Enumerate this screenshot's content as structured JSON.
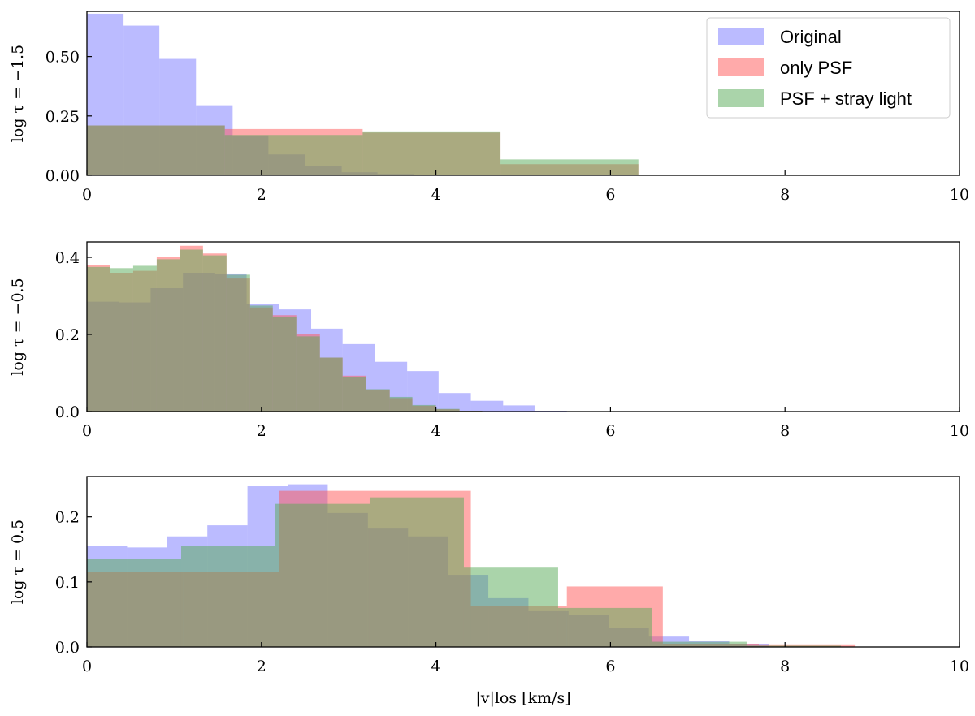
{
  "chart_data": [
    {
      "type": "bar",
      "subtype": "overlapping-histogram",
      "ylabel": "log τ = −1.5",
      "xlabel": "",
      "xlim": [
        0,
        10
      ],
      "ylim": [
        0,
        0.69
      ],
      "xticks": [
        "0",
        "2",
        "4",
        "6",
        "8",
        "10"
      ],
      "yticks": [
        "0.00",
        "0.25",
        "0.50"
      ],
      "ytick_values": [
        0,
        0.25,
        0.5
      ],
      "legend": true,
      "legend_position": "top-right",
      "series": [
        {
          "name": "Original",
          "color": "#7777ff",
          "bin_edges": [
            0,
            0.42,
            0.83,
            1.25,
            1.67,
            2.08,
            2.5,
            2.92,
            3.33,
            3.75,
            4.17,
            4.58,
            5.0
          ],
          "values": [
            0.68,
            0.63,
            0.49,
            0.295,
            0.168,
            0.088,
            0.038,
            0.013,
            0.006,
            0.003,
            0.002,
            0.001
          ]
        },
        {
          "name": "only PSF",
          "color": "#ff5555",
          "bin_edges": [
            0,
            1.58,
            3.16,
            4.74,
            6.32,
            7.9
          ],
          "values": [
            0.21,
            0.195,
            0.18,
            0.047,
            0.002
          ]
        },
        {
          "name": "PSF + stray light",
          "color": "#55aa55",
          "bin_edges": [
            0,
            1.58,
            3.16,
            4.74,
            6.32,
            7.9
          ],
          "values": [
            0.21,
            0.17,
            0.185,
            0.067,
            0.003
          ]
        }
      ]
    },
    {
      "type": "bar",
      "subtype": "overlapping-histogram",
      "ylabel": "log τ = −0.5",
      "xlabel": "",
      "xlim": [
        0,
        10
      ],
      "ylim": [
        0,
        0.44
      ],
      "xticks": [
        "0",
        "2",
        "4",
        "6",
        "8",
        "10"
      ],
      "yticks": [
        "0.0",
        "0.2",
        "0.4"
      ],
      "ytick_values": [
        0,
        0.2,
        0.4
      ],
      "legend": false,
      "series": [
        {
          "name": "Original",
          "color": "#7777ff",
          "bin_edges": [
            0,
            0.37,
            0.73,
            1.1,
            1.47,
            1.83,
            2.2,
            2.57,
            2.93,
            3.3,
            3.67,
            4.03,
            4.4,
            4.77,
            5.13,
            5.5
          ],
          "values": [
            0.285,
            0.283,
            0.32,
            0.36,
            0.358,
            0.28,
            0.265,
            0.215,
            0.175,
            0.129,
            0.105,
            0.048,
            0.028,
            0.016,
            0.002
          ]
        },
        {
          "name": "only PSF",
          "color": "#ff5555",
          "bin_edges": [
            0,
            0.27,
            0.53,
            0.8,
            1.07,
            1.33,
            1.6,
            1.87,
            2.13,
            2.4,
            2.67,
            2.93,
            3.2,
            3.47,
            3.73,
            4.0,
            4.27,
            4.53
          ],
          "values": [
            0.38,
            0.36,
            0.365,
            0.4,
            0.43,
            0.41,
            0.345,
            0.27,
            0.25,
            0.2,
            0.14,
            0.093,
            0.057,
            0.035,
            0.015,
            0.006,
            0.002
          ]
        },
        {
          "name": "PSF + stray light",
          "color": "#55aa55",
          "bin_edges": [
            0,
            0.27,
            0.53,
            0.8,
            1.07,
            1.33,
            1.6,
            1.87,
            2.13,
            2.4,
            2.67,
            2.93,
            3.2,
            3.47,
            3.73,
            4.0,
            4.27,
            4.53
          ],
          "values": [
            0.375,
            0.372,
            0.378,
            0.395,
            0.42,
            0.405,
            0.355,
            0.275,
            0.245,
            0.195,
            0.14,
            0.09,
            0.058,
            0.038,
            0.017,
            0.007,
            0.002
          ]
        }
      ]
    },
    {
      "type": "bar",
      "subtype": "overlapping-histogram",
      "ylabel": "log τ = 0.5",
      "xlabel": "|v|los [km/s]",
      "xlim": [
        0,
        10
      ],
      "ylim": [
        0,
        0.262
      ],
      "xticks": [
        "0",
        "2",
        "4",
        "6",
        "8",
        "10"
      ],
      "yticks": [
        "0.0",
        "0.1",
        "0.2"
      ],
      "ytick_values": [
        0,
        0.1,
        0.2
      ],
      "legend": false,
      "series": [
        {
          "name": "Original",
          "color": "#7777ff",
          "bin_edges": [
            0,
            0.46,
            0.92,
            1.38,
            1.84,
            2.3,
            2.76,
            3.22,
            3.68,
            4.14,
            4.6,
            5.06,
            5.52,
            5.98,
            6.44,
            6.9,
            7.36,
            7.82
          ],
          "values": [
            0.155,
            0.153,
            0.17,
            0.187,
            0.247,
            0.25,
            0.206,
            0.182,
            0.17,
            0.111,
            0.075,
            0.055,
            0.049,
            0.029,
            0.016,
            0.01,
            0.005
          ]
        },
        {
          "name": "only PSF",
          "color": "#ff5555",
          "bin_edges": [
            0,
            1.1,
            2.2,
            3.3,
            4.4,
            5.5,
            6.6,
            7.7,
            8.8
          ],
          "values": [
            0.116,
            0.116,
            0.24,
            0.24,
            0.063,
            0.093,
            0.005,
            0.004
          ]
        },
        {
          "name": "PSF + stray light",
          "color": "#55aa55",
          "bin_edges": [
            0,
            1.08,
            2.16,
            3.24,
            4.32,
            5.4,
            6.48,
            7.56,
            8.64
          ],
          "values": [
            0.135,
            0.155,
            0.22,
            0.23,
            0.122,
            0.06,
            0.008,
            0.002
          ]
        }
      ]
    }
  ]
}
